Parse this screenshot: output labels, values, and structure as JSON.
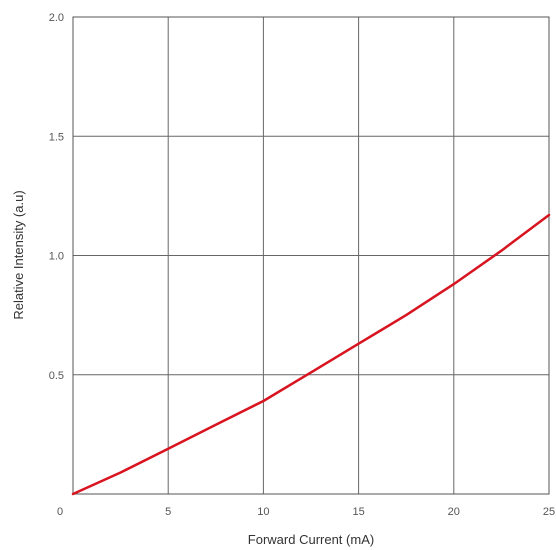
{
  "chart_data": {
    "type": "line",
    "xlabel": "Forward Current (mA)",
    "ylabel": "Relative Intensity (a.u)",
    "xlim": [
      0,
      25
    ],
    "ylim": [
      0,
      2.0
    ],
    "x_ticks": [
      "0",
      "5",
      "10",
      "15",
      "20",
      "25"
    ],
    "y_ticks": [
      "0.5",
      "1.0",
      "1.5",
      "2.0"
    ],
    "grid": true,
    "series": [
      {
        "color": "#d7141f",
        "x": [
          0,
          2.5,
          5,
          7.5,
          10,
          12.5,
          15,
          17.5,
          20,
          22.5,
          25
        ],
        "y": [
          0.0,
          0.09,
          0.19,
          0.29,
          0.39,
          0.51,
          0.63,
          0.75,
          0.88,
          1.02,
          1.17
        ]
      }
    ]
  }
}
